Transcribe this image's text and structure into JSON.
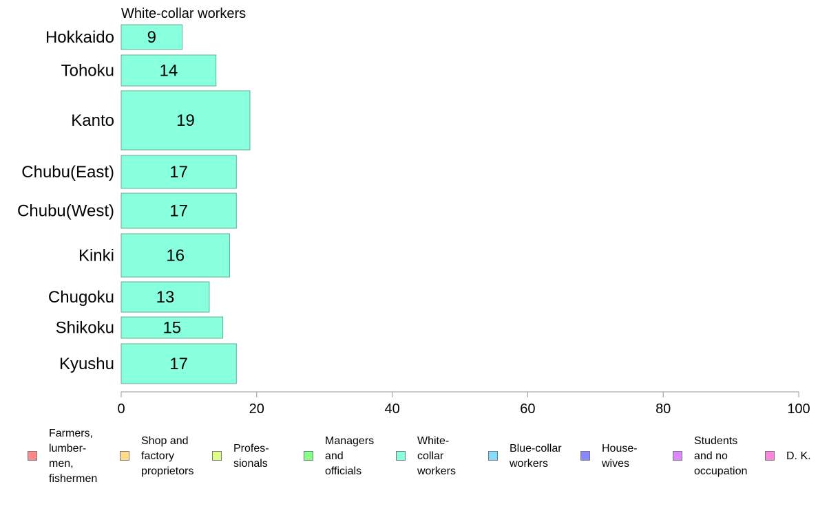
{
  "chart_data": {
    "type": "bar",
    "orientation": "horizontal",
    "title": "White-collar workers",
    "categories": [
      "Hokkaido",
      "Tohoku",
      "Kanto",
      "Chubu(East)",
      "Chubu(West)",
      "Kinki",
      "Chugoku",
      "Shikoku",
      "Kyushu"
    ],
    "values": [
      9,
      14,
      19,
      17,
      17,
      16,
      13,
      15,
      17
    ],
    "value_labels": [
      "9",
      "14",
      "19",
      "17",
      "17",
      "16",
      "13",
      "15",
      "17"
    ],
    "bar_color": "#88ffdd",
    "xlim": [
      0,
      100
    ],
    "xticks": [
      "0",
      "20",
      "40",
      "60",
      "80",
      "100"
    ],
    "xlabel": "",
    "ylabel": "",
    "grid": false,
    "legend_position": "bottom",
    "legend": [
      {
        "label": "Farmers,\nlumber-\nmen,\nfishermen",
        "color": "#ff8888"
      },
      {
        "label": "Shop and\nfactory\nproprietors",
        "color": "#ffdd88"
      },
      {
        "label": "Profes-\nsionals",
        "color": "#ddff88"
      },
      {
        "label": "Managers\nand\nofficials",
        "color": "#88ff88"
      },
      {
        "label": "White-\ncollar\nworkers",
        "color": "#88ffdd"
      },
      {
        "label": "Blue-collar\nworkers",
        "color": "#88ddff"
      },
      {
        "label": "House-\nwives",
        "color": "#8888ff"
      },
      {
        "label": "Students\nand no\noccupation",
        "color": "#dd88ff"
      },
      {
        "label": "D. K.",
        "color": "#ff88dd"
      }
    ]
  }
}
